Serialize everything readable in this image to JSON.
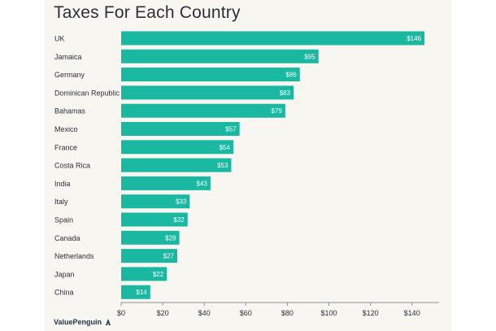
{
  "brand": {
    "name": "ValuePenguin",
    "icon": "penguin-logo-icon"
  },
  "colors": {
    "bar": "#1ab8a1",
    "axis": "#8a8f98",
    "text": "#2a2f3a",
    "label": "#ffffff"
  },
  "chart_data": {
    "type": "bar",
    "orientation": "horizontal",
    "title": "Taxes For Each Country",
    "xlabel": "",
    "ylabel": "",
    "categories": [
      "UK",
      "Jamaica",
      "Germany",
      "Dominican Republic",
      "Bahamas",
      "Mexico",
      "France",
      "Costa Rica",
      "India",
      "Italy",
      "Spain",
      "Canada",
      "Netherlands",
      "Japan",
      "China"
    ],
    "values": [
      146,
      95,
      86,
      83,
      79,
      57,
      54,
      53,
      43,
      33,
      32,
      28,
      27,
      22,
      14
    ],
    "value_labels": [
      "$146",
      "$95",
      "$86",
      "$83",
      "$79",
      "$57",
      "$54",
      "$53",
      "$43",
      "$33",
      "$32",
      "$28",
      "$27",
      "$22",
      "$14"
    ],
    "xlim": [
      0,
      150
    ],
    "xticks": [
      0,
      20,
      40,
      60,
      80,
      100,
      120,
      140
    ],
    "xtick_labels": [
      "$0",
      "$20",
      "$40",
      "$60",
      "$80",
      "$100",
      "$120",
      "$140"
    ],
    "grid": false,
    "legend": "none"
  }
}
